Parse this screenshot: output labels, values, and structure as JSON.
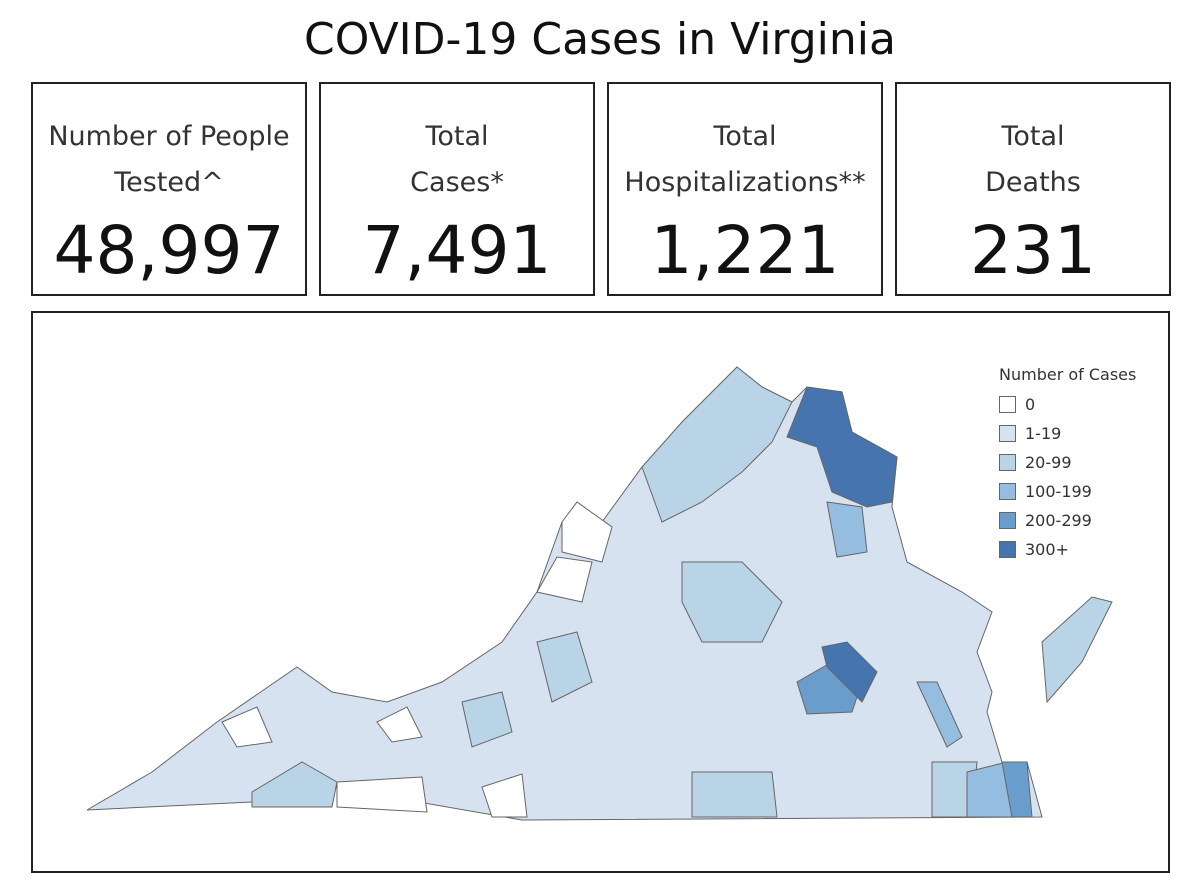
{
  "title": "COVID-19 Cases in Virginia",
  "cards": [
    {
      "label": "Number of People\nTested^",
      "value": "48,997"
    },
    {
      "label": "Total\nCases*",
      "value": "7,491"
    },
    {
      "label": "Total\nHospitalizations**",
      "value": "1,221"
    },
    {
      "label": "Total\nDeaths",
      "value": "231"
    }
  ],
  "legend": {
    "title": "Number of Cases",
    "items": [
      {
        "label": "0",
        "color": "#ffffff"
      },
      {
        "label": "1-19",
        "color": "#d6e2f0"
      },
      {
        "label": "20-99",
        "color": "#b9d4e7"
      },
      {
        "label": "100-199",
        "color": "#95bddf"
      },
      {
        "label": "200-299",
        "color": "#6b9dcc"
      },
      {
        "label": "300+",
        "color": "#4674af"
      }
    ]
  }
}
